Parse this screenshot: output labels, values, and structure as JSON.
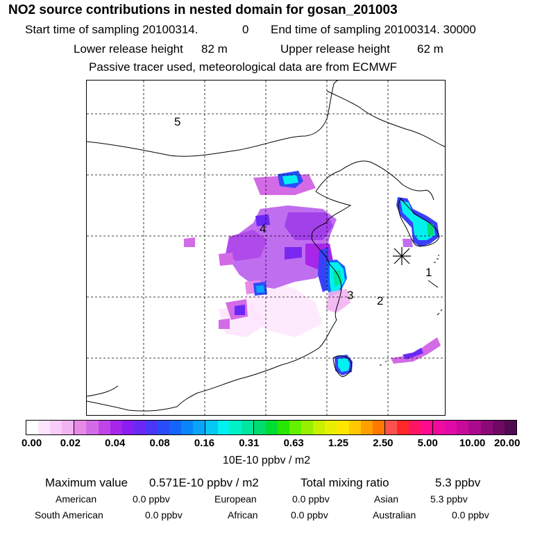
{
  "title": "NO2 source contributions in nested domain for gosan_201003",
  "header": {
    "start_label": "Start time of sampling 20100314.",
    "start_hour": "0",
    "end_label": "End time of sampling 20100314. 30000",
    "lower_label": "Lower release height",
    "lower_value": "82 m",
    "upper_label": "Upper release height",
    "upper_value": "62 m",
    "tracer_note": "Passive tracer used, meteorological data are from ECMWF"
  },
  "map": {
    "region_labels": [
      "1",
      "2",
      "3",
      "4",
      "5"
    ],
    "receptor_marker": "gosan-receptor-star"
  },
  "colorbar": {
    "tick_labels": [
      "0.00",
      "0.02",
      "0.04",
      "0.08",
      "0.16",
      "0.31",
      "0.63",
      "1.25",
      "2.50",
      "5.00",
      "10.00",
      "20.00"
    ],
    "units": "10E-10 ppbv / m2",
    "colors": [
      "#ffffff",
      "#fde6fd",
      "#f9ccf9",
      "#f2b3f2",
      "#e68ae6",
      "#d36ae6",
      "#bf45e8",
      "#a726ea",
      "#8a1ef0",
      "#6a28f5",
      "#4a36f8",
      "#2a4cfa",
      "#1464fa",
      "#0a84fa",
      "#08a6fa",
      "#06c8f6",
      "#03f0f0",
      "#00f0c8",
      "#00e6a0",
      "#00dc6e",
      "#00dc32",
      "#28e600",
      "#64f000",
      "#96f000",
      "#c8f000",
      "#e6f000",
      "#ffe600",
      "#ffc800",
      "#ffa000",
      "#ff7800",
      "#ff5050",
      "#ff2828",
      "#ff1464",
      "#ff0a8c",
      "#f00aa0",
      "#e00aa8",
      "#c80a9a",
      "#aa0a8c",
      "#8c0a78",
      "#6e0a64",
      "#500a50"
    ]
  },
  "stats": {
    "max_label": "Maximum value",
    "max_value": "0.571E-10 ppbv / m2",
    "total_label": "Total mixing ratio",
    "total_value": "5.3 ppbv",
    "regions": [
      {
        "name": "American",
        "value": "0.0 ppbv"
      },
      {
        "name": "European",
        "value": "0.0 ppbv"
      },
      {
        "name": "Asian",
        "value": "5.3 ppbv"
      },
      {
        "name": "South American",
        "value": "0.0 ppbv"
      },
      {
        "name": "African",
        "value": "0.0 ppbv"
      },
      {
        "name": "Australian",
        "value": "0.0 ppbv"
      }
    ]
  }
}
